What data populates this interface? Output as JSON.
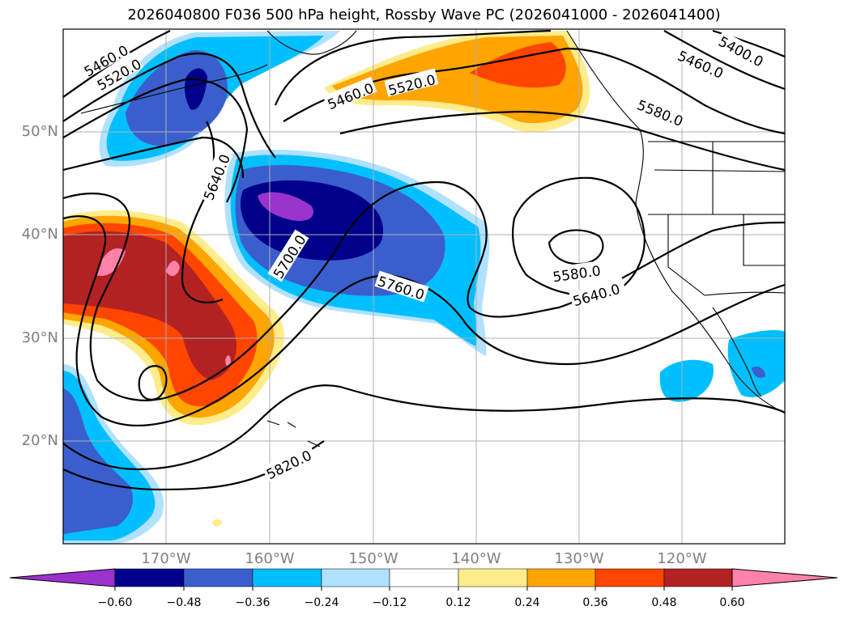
{
  "title": "2026040800 F036 500 hPa height, Rossby Wave PC (2026041000 - 2026041400)",
  "lat_ticks": [
    "50°N",
    "40°N",
    "30°N",
    "20°N"
  ],
  "lon_ticks": [
    "170°W",
    "160°W",
    "150°W",
    "140°W",
    "130°W",
    "120°W"
  ],
  "colorbar": {
    "ticks": [
      "−0.60",
      "−0.48",
      "−0.36",
      "−0.24",
      "−0.12",
      "0.12",
      "0.24",
      "0.36",
      "0.48",
      "0.60"
    ],
    "colors": [
      "#9933cc",
      "#00008b",
      "#3a5fcd",
      "#00bfff",
      "#b0e2ff",
      "#ffffff",
      "#ffec8b",
      "#ffa500",
      "#ff4500",
      "#b22222",
      "#ff82ab"
    ]
  },
  "contour_labels": [
    "5460.0",
    "5520.0",
    "5460.0",
    "5520.0",
    "5400.0",
    "5460.0",
    "5580.0",
    "5640.0",
    "5700.0",
    "5760.0",
    "5580.0",
    "5640.0",
    "5820.0"
  ],
  "colors": {
    "coast": "#000000",
    "grid": "#b0b0b0",
    "contour": "#000000"
  }
}
